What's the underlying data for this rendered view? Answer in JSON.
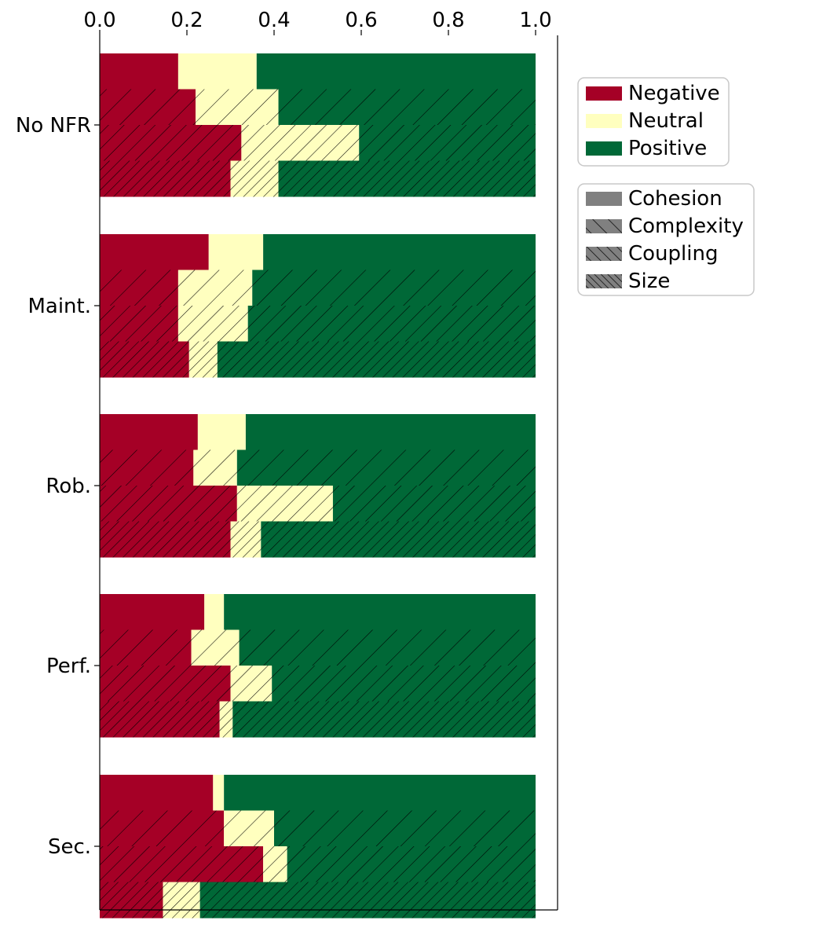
{
  "chart_data": {
    "type": "bar",
    "orientation": "horizontal",
    "stacked": true,
    "xlim": [
      0,
      1.0
    ],
    "x_ticks": [
      "0.0",
      "0.2",
      "0.4",
      "0.6",
      "0.8",
      "1.0"
    ],
    "x_axis_position": "top",
    "grid": false,
    "categories": [
      "No NFR",
      "Maint.",
      "Rob.",
      "Perf.",
      "Sec."
    ],
    "sentiments": [
      {
        "name": "Negative",
        "color": "#a50026"
      },
      {
        "name": "Neutral",
        "color": "#ffffbf"
      },
      {
        "name": "Positive",
        "color": "#006837"
      }
    ],
    "metrics": [
      {
        "name": "Cohesion",
        "hatch": "none"
      },
      {
        "name": "Complexity",
        "hatch": "sparse"
      },
      {
        "name": "Coupling",
        "hatch": "medium"
      },
      {
        "name": "Size",
        "hatch": "dense"
      }
    ],
    "data": [
      {
        "category": "No NFR",
        "rows": [
          {
            "metric": "Cohesion",
            "negative": 0.18,
            "neutral": 0.18,
            "positive": 0.64
          },
          {
            "metric": "Complexity",
            "negative": 0.22,
            "neutral": 0.19,
            "positive": 0.59
          },
          {
            "metric": "Coupling",
            "negative": 0.325,
            "neutral": 0.27,
            "positive": 0.405
          },
          {
            "metric": "Size",
            "negative": 0.3,
            "neutral": 0.11,
            "positive": 0.59
          }
        ]
      },
      {
        "category": "Maint.",
        "rows": [
          {
            "metric": "Cohesion",
            "negative": 0.25,
            "neutral": 0.125,
            "positive": 0.625
          },
          {
            "metric": "Complexity",
            "negative": 0.18,
            "neutral": 0.17,
            "positive": 0.65
          },
          {
            "metric": "Coupling",
            "negative": 0.18,
            "neutral": 0.16,
            "positive": 0.66
          },
          {
            "metric": "Size",
            "negative": 0.205,
            "neutral": 0.065,
            "positive": 0.73
          }
        ]
      },
      {
        "category": "Rob.",
        "rows": [
          {
            "metric": "Cohesion",
            "negative": 0.225,
            "neutral": 0.11,
            "positive": 0.665
          },
          {
            "metric": "Complexity",
            "negative": 0.215,
            "neutral": 0.1,
            "positive": 0.685
          },
          {
            "metric": "Coupling",
            "negative": 0.315,
            "neutral": 0.22,
            "positive": 0.465
          },
          {
            "metric": "Size",
            "negative": 0.3,
            "neutral": 0.07,
            "positive": 0.63
          }
        ]
      },
      {
        "category": "Perf.",
        "rows": [
          {
            "metric": "Cohesion",
            "negative": 0.24,
            "neutral": 0.045,
            "positive": 0.715
          },
          {
            "metric": "Complexity",
            "negative": 0.21,
            "neutral": 0.11,
            "positive": 0.68
          },
          {
            "metric": "Coupling",
            "negative": 0.3,
            "neutral": 0.095,
            "positive": 0.605
          },
          {
            "metric": "Size",
            "negative": 0.275,
            "neutral": 0.03,
            "positive": 0.695
          }
        ]
      },
      {
        "category": "Sec.",
        "rows": [
          {
            "metric": "Cohesion",
            "negative": 0.26,
            "neutral": 0.025,
            "positive": 0.715
          },
          {
            "metric": "Complexity",
            "negative": 0.285,
            "neutral": 0.115,
            "positive": 0.6
          },
          {
            "metric": "Coupling",
            "negative": 0.375,
            "neutral": 0.055,
            "positive": 0.57
          },
          {
            "metric": "Size",
            "negative": 0.145,
            "neutral": 0.085,
            "positive": 0.77
          }
        ]
      }
    ]
  }
}
